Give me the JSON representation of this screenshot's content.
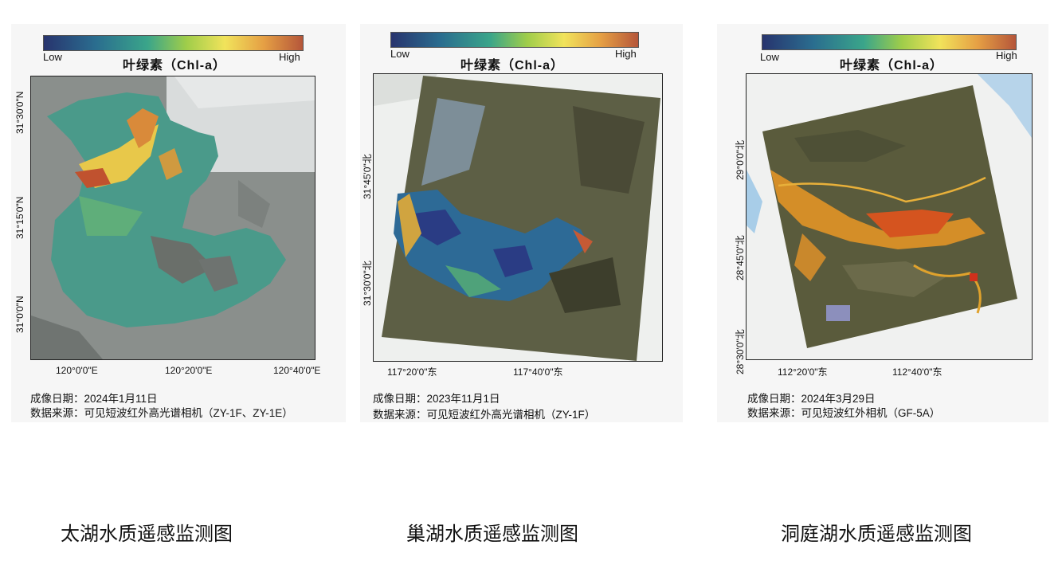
{
  "panels": [
    {
      "legend": {
        "low": "Low",
        "high": "High",
        "title": "叶绿素（Chl-a）"
      },
      "x_ticks": [
        "120°0'0\"E",
        "120°20'0\"E",
        "120°40'0\"E"
      ],
      "y_ticks": [
        "31°30'0\"N",
        "31°15'0\"N",
        "31°0'0\"N"
      ],
      "date_line": "成像日期：2024年1月11日",
      "source_line": "数据来源：可见短波红外高光谱相机（ZY-1F、ZY-1E）",
      "title": "太湖水质遥感监测图"
    },
    {
      "legend": {
        "low": "Low",
        "high": "High",
        "title": "叶绿素（Chl-a）"
      },
      "x_ticks": [
        "117°20'0\"东",
        "117°40'0\"东"
      ],
      "y_ticks": [
        "31°45'0\"北",
        "31°30'0\"北"
      ],
      "date_line": "成像日期：2023年11月1日",
      "source_line": "数据来源：可见短波红外高光谱相机（ZY-1F）",
      "title": "巢湖水质遥感监测图"
    },
    {
      "legend": {
        "low": "Low",
        "high": "High",
        "title": "叶绿素（Chl-a）"
      },
      "x_ticks": [
        "112°20'0\"东",
        "112°40'0\"东"
      ],
      "y_ticks": [
        "29°0'0\"北",
        "28°45'0\"北",
        "28°30'0\"北"
      ],
      "date_line": "成像日期：2024年3月29日",
      "source_line": "数据来源：可见短波红外相机（GF-5A）",
      "title": "洞庭湖水质遥感监测图"
    }
  ],
  "colors": {
    "low": "#28346e",
    "mid": "#3aa58a",
    "high": "#b5563a"
  }
}
